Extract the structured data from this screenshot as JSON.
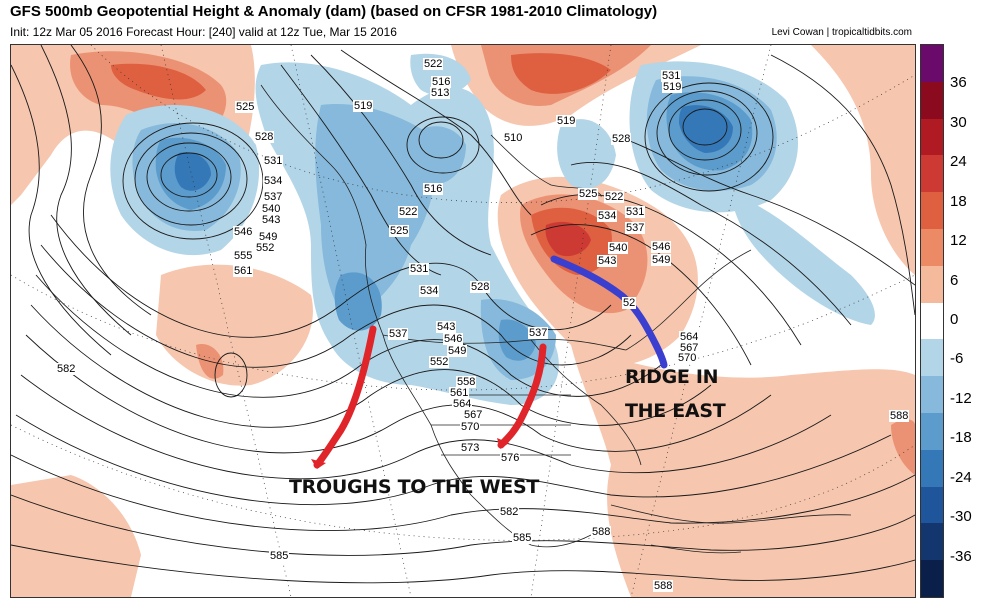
{
  "header": {
    "title": "GFS 500mb Geopotential Height & Anomaly (dam) (based on CFSR 1981-2010 Climatology)",
    "subtitle": "Init: 12z Mar 05 2016   Forecast Hour: [240]   valid at 12z Tue, Mar 15 2016",
    "credit": "Levi Cowan | tropicaltidbits.com"
  },
  "colorbar": {
    "ticks": [
      "36",
      "30",
      "24",
      "18",
      "12",
      "6",
      "0",
      "-6",
      "-12",
      "-18",
      "-24",
      "-30",
      "-36"
    ],
    "colors": [
      "#6a0a6a",
      "#8b0a1e",
      "#b01a22",
      "#cc3a33",
      "#de6040",
      "#ec8a65",
      "#f5b99b",
      "#ffffff",
      "#b3d5e8",
      "#86b9db",
      "#5b9ccc",
      "#3578b8",
      "#1f559a",
      "#13366e",
      "#0a1f4a"
    ]
  },
  "contour_labels": {
    "pacific": [
      "525",
      "528",
      "531",
      "534",
      "537",
      "540",
      "543",
      "546",
      "549",
      "552",
      "555",
      "561"
    ],
    "north": [
      "522",
      "516",
      "513",
      "519",
      "510",
      "516",
      "522",
      "525",
      "519"
    ],
    "conus": [
      "531",
      "534",
      "528",
      "537",
      "537",
      "543",
      "546",
      "549",
      "552",
      "558",
      "561",
      "564",
      "567",
      "570",
      "573",
      "576",
      "582",
      "585"
    ],
    "atlantic": [
      "531",
      "519",
      "528",
      "525",
      "522",
      "534",
      "537",
      "531",
      "540",
      "543",
      "546",
      "549",
      "52",
      "564",
      "567",
      "570",
      "588",
      "588",
      "588"
    ],
    "misc": [
      "582",
      "585"
    ]
  },
  "annotations": {
    "ridge_line1": "RIDGE IN",
    "ridge_line2": "THE EAST",
    "troughs": "TROUGHS TO THE WEST"
  },
  "colors": {
    "trough_arrow": "#e0252a",
    "ridge_arrow": "#3b3fd0"
  }
}
